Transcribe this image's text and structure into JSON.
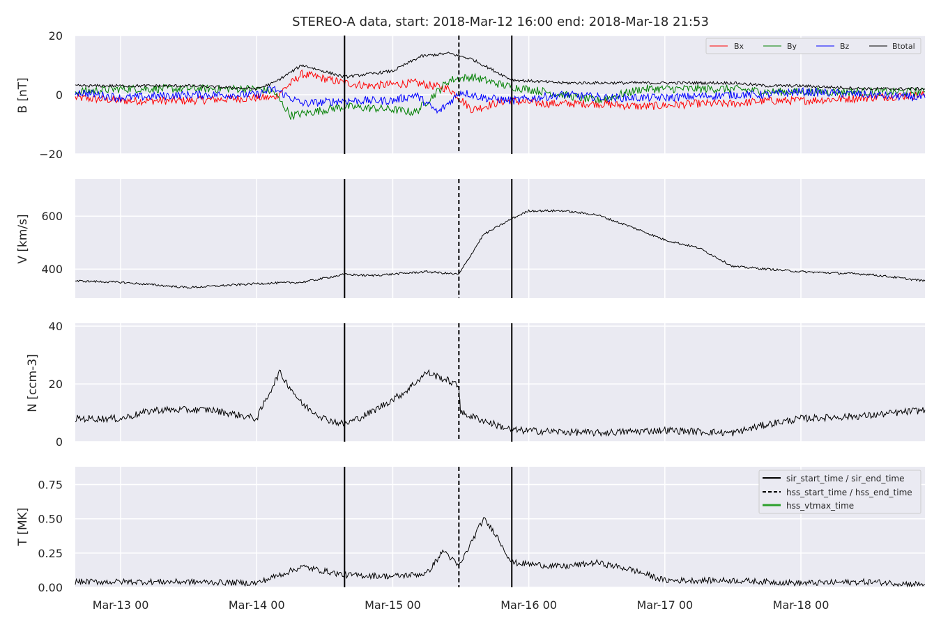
{
  "chart_data": {
    "type": "line",
    "title": "STEREO-A data, start: 2018-Mar-12 16:00  end: 2018-Mar-18 21:53",
    "x_range": [
      "2018-03-12T16:00",
      "2018-03-18T21:53"
    ],
    "x_ticks": [
      "Mar-13 00",
      "Mar-14 00",
      "Mar-15 00",
      "Mar-16 00",
      "Mar-17 00",
      "Mar-18 00"
    ],
    "event_lines": [
      {
        "name": "sir_start_time / sir_end_time",
        "style": "solid",
        "times": [
          "2018-03-14T15:30",
          "2018-03-15T21:00"
        ]
      },
      {
        "name": "hss_start_time / hss_end_time",
        "style": "dashed",
        "times": [
          "2018-03-15T11:40"
        ]
      },
      {
        "name": "hss_vtmax_time",
        "style": "solid",
        "color": "#2ca02c",
        "times": []
      }
    ],
    "panels": [
      {
        "ylabel": "B [nT]",
        "ylim": [
          -20,
          20
        ],
        "yticks": [
          "20",
          "0",
          "−20"
        ],
        "legend": "top-right",
        "series": [
          {
            "name": "Bx",
            "color": "#ff0000",
            "x": [
              "03-12 16:00",
              "03-13 00:00",
              "03-13 12:00",
              "03-14 00:00",
              "03-14 03:00",
              "03-14 08:00",
              "03-14 15:30",
              "03-14 20:00",
              "03-15 04:00",
              "03-15 10:00",
              "03-15 14:00",
              "03-15 20:00",
              "03-16 03:00",
              "03-16 12:00",
              "03-16 20:00",
              "03-17 06:00",
              "03-17 12:00",
              "03-17 18:00",
              "03-18 00:00",
              "03-18 12:00",
              "03-18 21:53"
            ],
            "values": [
              -1,
              -2,
              -2,
              -1,
              -1,
              7,
              4,
              3,
              4,
              2,
              -5,
              -2,
              -3,
              -3,
              -4,
              -3,
              -3,
              -2,
              -2,
              -1,
              0
            ]
          },
          {
            "name": "By",
            "color": "#008000",
            "x": [
              "03-12 16:00",
              "03-13 00:00",
              "03-13 12:00",
              "03-14 00:00",
              "03-14 03:00",
              "03-14 06:00",
              "03-14 15:30",
              "03-15 00:00",
              "03-15 04:00",
              "03-15 10:00",
              "03-15 14:00",
              "03-15 20:00",
              "03-16 03:00",
              "03-16 12:00",
              "03-16 20:00",
              "03-17 06:00",
              "03-17 12:00",
              "03-17 18:00",
              "03-18 00:00",
              "03-18 12:00",
              "03-18 21:53"
            ],
            "values": [
              1,
              2,
              2,
              2,
              1,
              -7,
              -4,
              -5,
              -6,
              5,
              6,
              3,
              1,
              -2,
              2,
              2,
              2,
              1,
              1,
              1,
              1
            ]
          },
          {
            "name": "Bz",
            "color": "#0000ff",
            "x": [
              "03-12 16:00",
              "03-13 00:00",
              "03-13 12:00",
              "03-14 00:00",
              "03-14 03:00",
              "03-14 08:00",
              "03-14 15:30",
              "03-15 00:00",
              "03-15 04:00",
              "03-15 08:00",
              "03-15 12:00",
              "03-15 16:00",
              "03-15 21:00",
              "03-16 06:00",
              "03-16 14:00",
              "03-17 00:00",
              "03-17 12:00",
              "03-17 18:00",
              "03-18 00:00",
              "03-18 12:00",
              "03-18 21:53"
            ],
            "values": [
              1,
              -1,
              0,
              0,
              2,
              -3,
              -2,
              -2,
              0,
              -6,
              1,
              -1,
              -2,
              0,
              -1,
              -1,
              0,
              0,
              1,
              0,
              -1
            ]
          },
          {
            "name": "Btotal",
            "color": "#000000",
            "x": [
              "03-12 16:00",
              "03-13 00:00",
              "03-13 12:00",
              "03-14 00:00",
              "03-14 03:00",
              "03-14 08:00",
              "03-14 15:30",
              "03-15 00:00",
              "03-15 05:00",
              "03-15 10:00",
              "03-15 14:00",
              "03-15 21:00",
              "03-16 06:00",
              "03-16 14:00",
              "03-16 20:00",
              "03-17 06:00",
              "03-17 12:00",
              "03-17 18:00",
              "03-18 00:00",
              "03-18 12:00",
              "03-18 21:53"
            ],
            "values": [
              3,
              3,
              3,
              2,
              4,
              10,
              6,
              8,
              13,
              14,
              12,
              5,
              4,
              4,
              4,
              4,
              4,
              3,
              3,
              2,
              2
            ]
          }
        ]
      },
      {
        "ylabel": "V [km/s]",
        "ylim": [
          290,
          740
        ],
        "yticks": [
          "600",
          "400"
        ],
        "series": [
          {
            "name": "",
            "color": "#000000",
            "x": [
              "03-12 16:00",
              "03-13 00:00",
              "03-13 12:00",
              "03-14 00:00",
              "03-14 08:00",
              "03-14 15:30",
              "03-14 20:00",
              "03-15 06:00",
              "03-15 11:40",
              "03-15 16:00",
              "03-15 21:00",
              "03-16 00:00",
              "03-16 06:00",
              "03-16 12:00",
              "03-16 18:00",
              "03-17 00:00",
              "03-17 06:00",
              "03-17 12:00",
              "03-17 18:00",
              "03-18 00:00",
              "03-18 12:00",
              "03-18 21:53"
            ],
            "values": [
              355,
              350,
              330,
              345,
              350,
              380,
              375,
              390,
              380,
              530,
              590,
              620,
              620,
              605,
              560,
              510,
              480,
              410,
              400,
              390,
              380,
              355
            ]
          }
        ]
      },
      {
        "ylabel": "N [ccm-3]",
        "ylim": [
          0,
          41
        ],
        "yticks": [
          "40",
          "20",
          "0"
        ],
        "series": [
          {
            "name": "",
            "color": "#000000",
            "x": [
              "03-12 16:00",
              "03-13 00:00",
              "03-13 06:00",
              "03-13 16:00",
              "03-14 00:00",
              "03-14 04:00",
              "03-14 08:00",
              "03-14 12:00",
              "03-14 15:30",
              "03-14 20:00",
              "03-15 02:00",
              "03-15 06:00",
              "03-15 10:00",
              "03-15 11:40",
              "03-15 12:00",
              "03-15 18:00",
              "03-15 21:00",
              "03-16 12:00",
              "03-17 00:00",
              "03-17 12:00",
              "03-17 18:00",
              "03-18 00:00",
              "03-18 12:00",
              "03-18 21:53"
            ],
            "values": [
              8,
              8,
              11,
              11,
              8,
              24,
              13,
              8,
              6,
              10,
              17,
              24,
              21,
              19,
              10,
              6,
              4,
              3,
              4,
              3,
              6,
              8,
              9,
              11
            ]
          }
        ]
      },
      {
        "ylabel": "T [MK]",
        "ylim": [
          0,
          0.88
        ],
        "yticks": [
          "0.75",
          "0.50",
          "0.25",
          "0.00"
        ],
        "legend": "top-right",
        "series": [
          {
            "name": "",
            "color": "#000000",
            "x": [
              "03-12 16:00",
              "03-13 00:00",
              "03-13 12:00",
              "03-14 00:00",
              "03-14 08:00",
              "03-14 15:30",
              "03-15 00:00",
              "03-15 06:00",
              "03-15 09:00",
              "03-15 11:40",
              "03-15 16:00",
              "03-15 18:00",
              "03-15 21:00",
              "03-16 06:00",
              "03-16 12:00",
              "03-16 18:00",
              "03-17 00:00",
              "03-17 12:00",
              "03-18 00:00",
              "03-18 12:00",
              "03-18 21:53"
            ],
            "values": [
              0.04,
              0.04,
              0.04,
              0.03,
              0.15,
              0.09,
              0.08,
              0.1,
              0.27,
              0.15,
              0.5,
              0.4,
              0.18,
              0.15,
              0.18,
              0.13,
              0.05,
              0.05,
              0.03,
              0.04,
              0.02
            ]
          }
        ]
      }
    ]
  }
}
